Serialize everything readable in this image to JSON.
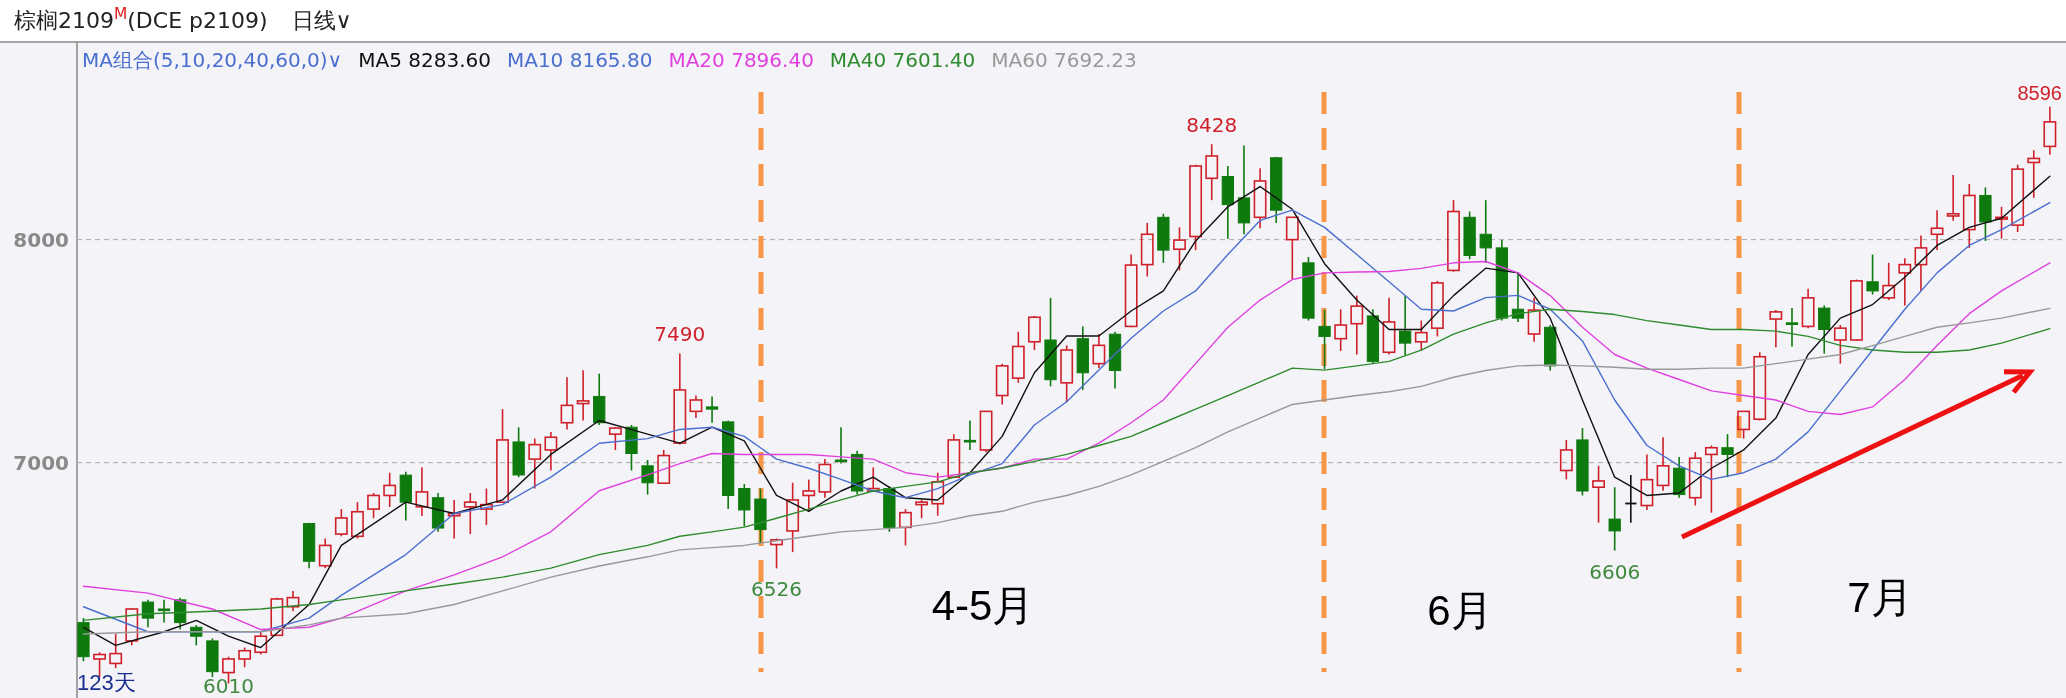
{
  "chart_data": {
    "type": "candlestick",
    "title": "棕榈2109$^{M}$(DCE p2109)",
    "subtitle": "日线∨",
    "legend_title": "MA组合(5,10,20,40,60,0)∨",
    "categories": [
      null,
      null,
      null,
      null,
      null,
      null,
      null,
      null,
      null,
      null,
      null,
      null,
      null,
      null,
      null,
      null,
      null,
      null,
      null,
      null,
      null,
      null,
      null,
      null,
      null,
      null,
      null,
      null,
      null,
      null,
      null,
      null,
      null,
      null,
      null,
      null,
      null,
      null,
      null,
      null,
      null,
      null,
      null,
      null,
      null,
      null,
      null,
      null,
      null,
      null,
      null,
      null,
      null,
      null,
      null,
      null,
      null,
      null,
      null,
      null,
      null,
      null,
      null,
      null,
      null,
      null,
      null,
      null,
      null,
      null,
      null,
      null,
      null,
      null,
      null,
      null,
      null,
      null,
      null,
      null,
      null,
      null,
      null,
      null,
      null,
      null,
      null,
      null,
      null,
      null,
      null,
      null,
      null,
      null,
      null,
      null,
      null,
      null,
      null,
      null,
      null,
      null,
      null,
      null,
      null,
      null,
      null,
      null,
      null,
      null,
      null,
      null,
      null,
      null,
      null,
      null,
      null,
      null,
      null,
      null,
      null,
      null,
      null
    ],
    "ohlc": [
      [
        6283,
        6303,
        6110,
        6130
      ],
      [
        6120,
        6150,
        6039,
        6140
      ],
      [
        6100,
        6232,
        6079,
        6144
      ],
      [
        6201,
        6348,
        6181,
        6344
      ],
      [
        6375,
        6385,
        6262,
        6303
      ],
      [
        6344,
        6385,
        6283,
        6340
      ],
      [
        6385,
        6395,
        6252,
        6283
      ],
      [
        6262,
        6272,
        6181,
        6222
      ],
      [
        6201,
        6212,
        6039,
        6063
      ],
      [
        6059,
        6130,
        6010,
        6120
      ],
      [
        6120,
        6171,
        6083,
        6157
      ],
      [
        6150,
        6242,
        6140,
        6222
      ],
      [
        6226,
        6395,
        6226,
        6389
      ],
      [
        6354,
        6425,
        6334,
        6395
      ],
      [
        6727,
        6731,
        6527,
        6558
      ],
      [
        6538,
        6660,
        6527,
        6629
      ],
      [
        6680,
        6792,
        6670,
        6752
      ],
      [
        6670,
        6823,
        6660,
        6780
      ],
      [
        6792,
        6864,
        6751,
        6853
      ],
      [
        6853,
        6955,
        6802,
        6898
      ],
      [
        6944,
        6959,
        6741,
        6823
      ],
      [
        6802,
        6979,
        6761,
        6869
      ],
      [
        6843,
        6864,
        6690,
        6707
      ],
      [
        6762,
        6833,
        6660,
        6772
      ],
      [
        6802,
        6864,
        6680,
        6823
      ],
      [
        6792,
        6884,
        6721,
        6812
      ],
      [
        6823,
        7240,
        6823,
        7102
      ],
      [
        7093,
        7159,
        6935,
        6945
      ],
      [
        7016,
        7108,
        6884,
        7081
      ],
      [
        7057,
        7138,
        6965,
        7114
      ],
      [
        7179,
        7383,
        7149,
        7257
      ],
      [
        7265,
        7414,
        7189,
        7277
      ],
      [
        7297,
        7399,
        7169,
        7179
      ],
      [
        7128,
        7159,
        7057,
        7155
      ],
      [
        7159,
        7169,
        6965,
        7041
      ],
      [
        6986,
        7012,
        6857,
        6910
      ],
      [
        6908,
        7057,
        6904,
        7032
      ],
      [
        7088,
        7490,
        7081,
        7326
      ],
      [
        7230,
        7301,
        7200,
        7281
      ],
      [
        7250,
        7297,
        7179,
        7240
      ],
      [
        7183,
        7189,
        6792,
        6853
      ],
      [
        6884,
        6904,
        6715,
        6788
      ],
      [
        6837,
        6884,
        6640,
        6700
      ],
      [
        6633,
        6660,
        6526,
        6654
      ],
      [
        6694,
        6910,
        6599,
        6833
      ],
      [
        6853,
        6924,
        6782,
        6873
      ],
      [
        6869,
        7016,
        6843,
        6992
      ],
      [
        7012,
        7159,
        6996,
        7006
      ],
      [
        7037,
        7053,
        6857,
        6873
      ],
      [
        6873,
        6979,
        6869,
        6884
      ],
      [
        6884,
        6894,
        6690,
        6710
      ],
      [
        6710,
        6792,
        6629,
        6776
      ],
      [
        6812,
        6833,
        6751,
        6823
      ],
      [
        6816,
        6955,
        6762,
        6914
      ],
      [
        6935,
        7128,
        6931,
        7102
      ],
      [
        7100,
        7189,
        7057,
        7097
      ],
      [
        7057,
        7230,
        7047,
        7230
      ],
      [
        7301,
        7444,
        7261,
        7434
      ],
      [
        7379,
        7587,
        7358,
        7521
      ],
      [
        7542,
        7658,
        7505,
        7652
      ],
      [
        7550,
        7739,
        7342,
        7372
      ],
      [
        7358,
        7526,
        7271,
        7505
      ],
      [
        7556,
        7611,
        7326,
        7403
      ],
      [
        7444,
        7577,
        7424,
        7526
      ],
      [
        7576,
        7587,
        7332,
        7413
      ],
      [
        7611,
        7933,
        7607,
        7886
      ],
      [
        7888,
        8075,
        7835,
        8024
      ],
      [
        8100,
        8116,
        7896,
        7953
      ],
      [
        7957,
        8055,
        7862,
        7998
      ],
      [
        8014,
        8336,
        7953,
        8330
      ],
      [
        8275,
        8428,
        8177,
        8375
      ],
      [
        8283,
        8330,
        8004,
        8157
      ],
      [
        8187,
        8422,
        8024,
        8075
      ],
      [
        8100,
        8320,
        8051,
        8263
      ],
      [
        8367,
        8371,
        8075,
        8132
      ],
      [
        8000,
        8100,
        7821,
        8100
      ],
      [
        7896,
        7922,
        7637,
        7648
      ],
      [
        7611,
        7684,
        7420,
        7566
      ],
      [
        7556,
        7688,
        7501,
        7617
      ],
      [
        7623,
        7749,
        7485,
        7702
      ],
      [
        7658,
        7688,
        7444,
        7454
      ],
      [
        7495,
        7739,
        7485,
        7631
      ],
      [
        7590,
        7750,
        7480,
        7536
      ],
      [
        7542,
        7637,
        7501,
        7583
      ],
      [
        7603,
        7815,
        7566,
        7806
      ],
      [
        7862,
        8177,
        7856,
        8126
      ],
      [
        8100,
        8126,
        7912,
        7929
      ],
      [
        8024,
        8177,
        7896,
        7963
      ],
      [
        7963,
        7998,
        7637,
        7648
      ],
      [
        7688,
        7855,
        7631,
        7648
      ],
      [
        7577,
        7739,
        7542,
        7684
      ],
      [
        7607,
        7617,
        7413,
        7434
      ],
      [
        6965,
        7102,
        6925,
        7057
      ],
      [
        7102,
        7155,
        6853,
        6873
      ],
      [
        6890,
        6986,
        6731,
        6918
      ],
      [
        6747,
        6890,
        6606,
        6694
      ],
      [
        6817,
        6945,
        6731,
        6817
      ],
      [
        6808,
        7037,
        6788,
        6924
      ],
      [
        6898,
        7114,
        6874,
        6986
      ],
      [
        6975,
        7026,
        6843,
        6857
      ],
      [
        6843,
        7047,
        6808,
        7020
      ],
      [
        7037,
        7077,
        6776,
        7067
      ],
      [
        7067,
        7128,
        6935,
        7037
      ],
      [
        7149,
        7230,
        7108,
        7230
      ],
      [
        7195,
        7495,
        7189,
        7475
      ],
      [
        7644,
        7684,
        7517,
        7676
      ],
      [
        7627,
        7693,
        7521,
        7623
      ],
      [
        7611,
        7780,
        7603,
        7739
      ],
      [
        7693,
        7705,
        7489,
        7597
      ],
      [
        7550,
        7617,
        7444,
        7603
      ],
      [
        7550,
        7821,
        7546,
        7815
      ],
      [
        7811,
        7933,
        7754,
        7770
      ],
      [
        7739,
        7896,
        7729,
        7794
      ],
      [
        7851,
        7917,
        7705,
        7888
      ],
      [
        7888,
        8018,
        7770,
        7963
      ],
      [
        8024,
        8132,
        7953,
        8051
      ],
      [
        8106,
        8290,
        8085,
        8116
      ],
      [
        8045,
        8249,
        7963,
        8198
      ],
      [
        8198,
        8234,
        7994,
        8079
      ],
      [
        8092,
        8147,
        8004,
        8100
      ],
      [
        8065,
        8336,
        8034,
        8316
      ],
      [
        8346,
        8401,
        8187,
        8364
      ],
      [
        8418,
        8596,
        8381,
        8528
      ]
    ],
    "series": [
      {
        "type": "line",
        "name": "MA5 8283.60",
        "color": "#111111",
        "values": [
          6262,
          null,
          6181,
          null,
          null,
          6242,
          null,
          6293,
          null,
          6222,
          null,
          6171,
          null,
          null,
          6364,
          null,
          6629,
          null,
          null,
          null,
          6823,
          null,
          null,
          6772,
          null,
          null,
          6833,
          null,
          null,
          7037,
          null,
          null,
          7189,
          null,
          null,
          7128,
          null,
          7088,
          null,
          7159,
          null,
          7098,
          null,
          6853,
          null,
          6782,
          null,
          6873,
          null,
          6935,
          null,
          6843,
          null,
          6833,
          null,
          6955,
          null,
          7118,
          null,
          7403,
          null,
          7568,
          null,
          7568,
          null,
          7680,
          null,
          7770,
          null,
          7994,
          null,
          8147,
          null,
          8238,
          null,
          8136,
          null,
          7892,
          null,
          7729,
          null,
          7597,
          null,
          7597,
          null,
          7749,
          null,
          7872,
          null,
          7851,
          null,
          7648,
          null,
          7281,
          null,
          6935,
          null,
          6853,
          null,
          6864,
          null,
          6975,
          null,
          7057,
          null,
          7200,
          null,
          7485,
          null,
          7648,
          null,
          7709,
          null,
          7831,
          null,
          7974,
          null,
          8055,
          null,
          8096,
          null,
          null,
          8284
        ]
      },
      {
        "type": "line",
        "name": "MA10 8165.80",
        "color": "#4a6fd0",
        "values": [
          6354,
          null,
          null,
          null,
          6242,
          null,
          null,
          null,
          6242,
          null,
          null,
          6242,
          null,
          null,
          6303,
          null,
          6405,
          null,
          null,
          null,
          6588,
          null,
          null,
          6772,
          null,
          null,
          6812,
          null,
          null,
          6935,
          null,
          null,
          7087,
          null,
          null,
          7108,
          null,
          7149,
          null,
          7159,
          null,
          7118,
          null,
          7016,
          null,
          6975,
          null,
          6925,
          null,
          6873,
          null,
          6843,
          null,
          6884,
          null,
          6945,
          null,
          6996,
          null,
          7169,
          null,
          7273,
          null,
          7415,
          null,
          7558,
          null,
          7680,
          null,
          7770,
          null,
          7933,
          null,
          8086,
          null,
          8132,
          null,
          8055,
          null,
          7933,
          null,
          7811,
          null,
          7688,
          null,
          7680,
          null,
          7740,
          null,
          7750,
          null,
          7688,
          null,
          7546,
          null,
          7281,
          null,
          7077,
          null,
          6986,
          null,
          6925,
          null,
          6955,
          null,
          7016,
          null,
          7138,
          null,
          7322,
          null,
          7505,
          null,
          7688,
          null,
          7851,
          null,
          7974,
          null,
          8045,
          null,
          null,
          8166
        ]
      },
      {
        "type": "line",
        "name": "MA20 7896.40",
        "color": "#e040e0",
        "values": [
          6446,
          null,
          null,
          null,
          6415,
          null,
          null,
          null,
          6344,
          null,
          null,
          6252,
          null,
          null,
          6262,
          null,
          6303,
          null,
          null,
          null,
          6425,
          null,
          null,
          6497,
          null,
          null,
          6578,
          null,
          null,
          6690,
          null,
          null,
          6874,
          null,
          null,
          6945,
          null,
          6996,
          null,
          7041,
          null,
          7037,
          null,
          7037,
          null,
          7037,
          null,
          7026,
          null,
          7016,
          null,
          6955,
          null,
          6935,
          null,
          6955,
          null,
          6976,
          null,
          7016,
          null,
          7016,
          null,
          7088,
          null,
          7179,
          null,
          7281,
          null,
          7444,
          null,
          7607,
          null,
          7729,
          null,
          7821,
          null,
          7851,
          null,
          7855,
          null,
          7857,
          null,
          7871,
          null,
          7896,
          null,
          7902,
          null,
          7851,
          null,
          7749,
          null,
          7607,
          null,
          7485,
          null,
          7424,
          null,
          7373,
          null,
          7322,
          null,
          7301,
          null,
          7281,
          null,
          7230,
          null,
          7216,
          null,
          7250,
          null,
          7373,
          null,
          7525,
          null,
          7668,
          null,
          7770,
          null,
          null,
          7896
        ]
      },
      {
        "type": "line",
        "name": "MA40 7601.40",
        "color": "#2e8b2e",
        "values": [
          6293,
          null,
          null,
          null,
          6323,
          null,
          null,
          null,
          6334,
          null,
          null,
          6344,
          null,
          null,
          6364,
          null,
          6385,
          null,
          null,
          null,
          6425,
          null,
          null,
          6456,
          null,
          null,
          6487,
          null,
          null,
          6527,
          null,
          null,
          6588,
          null,
          null,
          6629,
          null,
          6670,
          null,
          6690,
          null,
          6711,
          null,
          6751,
          null,
          6792,
          null,
          6833,
          null,
          6873,
          null,
          6894,
          null,
          6914,
          null,
          6955,
          null,
          6976,
          null,
          7006,
          null,
          7037,
          null,
          7077,
          null,
          7118,
          null,
          7179,
          null,
          7240,
          null,
          7301,
          null,
          7362,
          null,
          7424,
          null,
          7415,
          null,
          7434,
          null,
          7454,
          null,
          7505,
          null,
          7576,
          null,
          7627,
          null,
          7668,
          null,
          7688,
          null,
          7678,
          null,
          7664,
          null,
          7637,
          null,
          7617,
          null,
          7597,
          null,
          7597,
          null,
          7590,
          null,
          7566,
          null,
          7526,
          null,
          7505,
          null,
          7495,
          null,
          7495,
          null,
          7505,
          null,
          7536,
          null,
          null,
          7601
        ]
      },
      {
        "type": "line",
        "name": "MA60 7692.23",
        "color": "#999999",
        "values": [
          6232,
          null,
          null,
          null,
          6242,
          null,
          null,
          null,
          6242,
          null,
          null,
          6242,
          null,
          null,
          6273,
          null,
          6303,
          null,
          null,
          null,
          6323,
          null,
          null,
          6364,
          null,
          null,
          6425,
          null,
          null,
          6487,
          null,
          null,
          6537,
          null,
          null,
          6578,
          null,
          6609,
          null,
          6619,
          null,
          6629,
          null,
          6650,
          null,
          6670,
          null,
          6690,
          null,
          6700,
          null,
          6710,
          null,
          6731,
          null,
          6762,
          null,
          6782,
          null,
          6823,
          null,
          6853,
          null,
          6894,
          null,
          6945,
          null,
          7006,
          null,
          7067,
          null,
          7138,
          null,
          7200,
          null,
          7261,
          null,
          7281,
          null,
          7301,
          null,
          7318,
          null,
          7342,
          null,
          7383,
          null,
          7413,
          null,
          7434,
          null,
          7438,
          null,
          7434,
          null,
          7428,
          null,
          7419,
          null,
          7419,
          null,
          7424,
          null,
          7424,
          null,
          7444,
          null,
          7464,
          null,
          7485,
          null,
          7525,
          null,
          7566,
          null,
          7607,
          null,
          7627,
          null,
          7648,
          null,
          null,
          7692
        ]
      }
    ],
    "ylim": [
      5945,
      8886
    ],
    "yticks": [
      7000,
      8000
    ],
    "grid": "y",
    "legend": "top left",
    "annotations": [
      {
        "text": "7490",
        "y": 7490
      },
      {
        "text": "8428",
        "y": 8428
      },
      {
        "text": "6010",
        "y": 6010
      },
      {
        "text": "6526",
        "y": 6526
      },
      {
        "text": "6606",
        "y": 6606
      },
      "123天",
      "4-5月",
      "6月",
      "7月",
      "8596"
    ]
  }
}
